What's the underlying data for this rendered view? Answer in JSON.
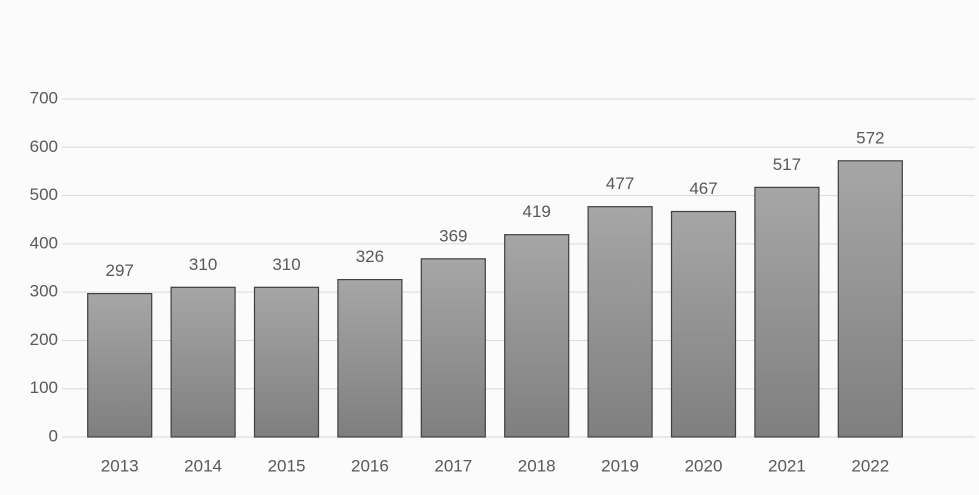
{
  "chart_data": {
    "type": "bar",
    "categories": [
      "2013",
      "2014",
      "2015",
      "2016",
      "2017",
      "2018",
      "2019",
      "2020",
      "2021",
      "2022"
    ],
    "values": [
      297,
      310,
      310,
      326,
      369,
      419,
      477,
      467,
      517,
      572
    ],
    "color": "#8c8c8c",
    "ylim": [
      0,
      700
    ],
    "yticks": [
      0,
      100,
      200,
      300,
      400,
      500,
      600,
      700
    ],
    "grid": true
  }
}
